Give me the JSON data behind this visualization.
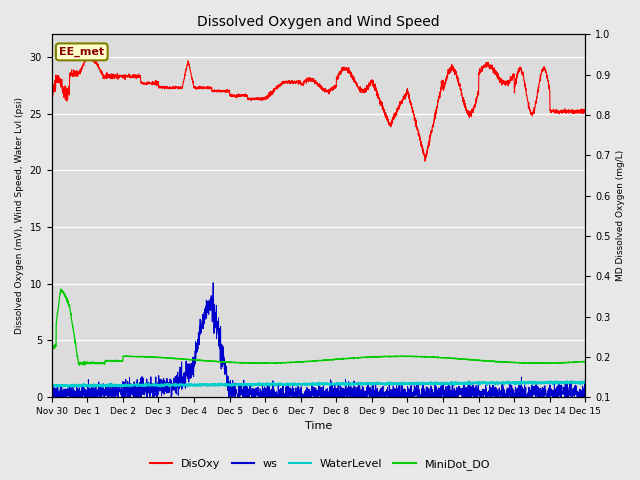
{
  "title": "Dissolved Oxygen and Wind Speed",
  "ylabel_left": "Dissolved Oxygen (mV), Wind Speed, Water Lvl (psi)",
  "ylabel_right": "MD Dissolved Oxygen (mg/L)",
  "xlabel": "Time",
  "ylim_left": [
    0,
    32
  ],
  "ylim_right": [
    0.1,
    1.0
  ],
  "yticks_left": [
    0,
    5,
    10,
    15,
    20,
    25,
    30
  ],
  "yticks_right": [
    0.1,
    0.2,
    0.3,
    0.4,
    0.5,
    0.6,
    0.7,
    0.8,
    0.9,
    1.0
  ],
  "bg_color": "#e8e8e8",
  "plot_bg_color": "#dcdcdc",
  "annotation_text": "EE_met",
  "colors": {
    "DisOxy": "#ff0000",
    "ws": "#0000cc",
    "WaterLevel": "#00cccc",
    "MiniDot_DO": "#00cc00"
  },
  "legend_labels": [
    "DisOxy",
    "ws",
    "WaterLevel",
    "MiniDot_DO"
  ],
  "xtick_hours": [
    0,
    24,
    48,
    72,
    96,
    120,
    144,
    168,
    192,
    216,
    240,
    264,
    288,
    312,
    336,
    360
  ],
  "xtick_labels": [
    "Nov 30",
    "Dec 1",
    "Dec 2",
    "Dec 3",
    "Dec 4",
    "Dec 5",
    "Dec 6",
    "Dec 7",
    "Dec 8",
    "Dec 9",
    "Dec 10",
    "Dec 11",
    "Dec 12",
    "Dec 13",
    "Dec 14",
    "Dec 15"
  ]
}
